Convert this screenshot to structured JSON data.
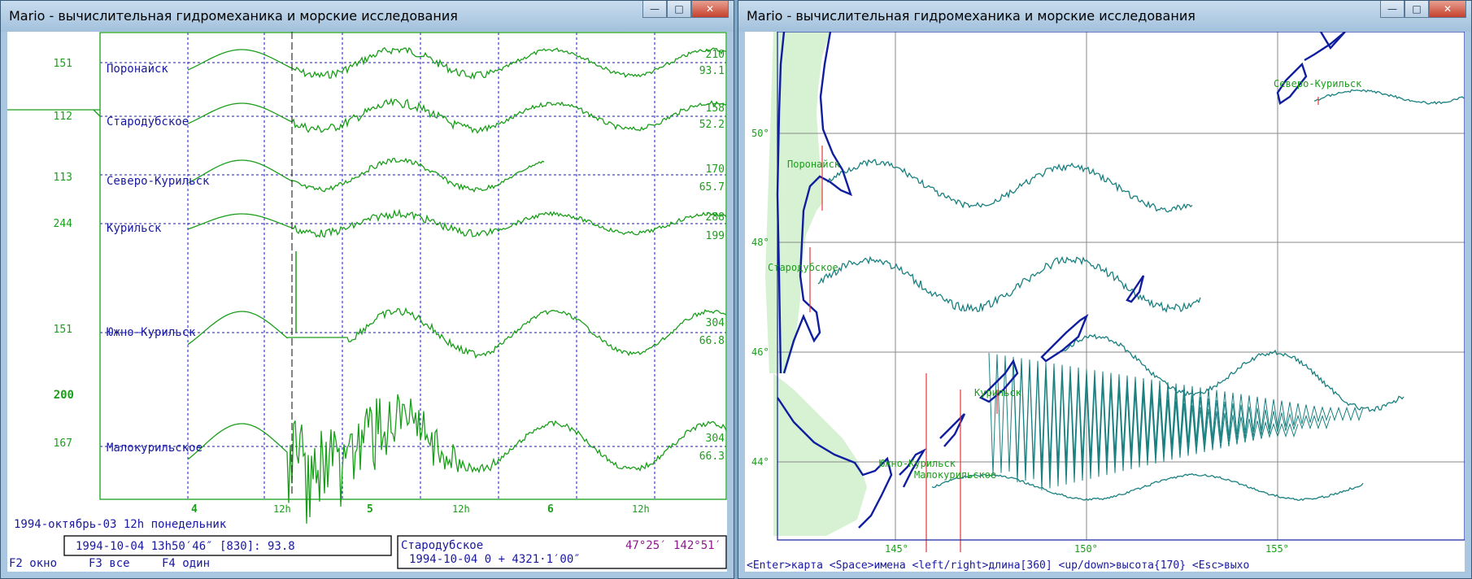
{
  "colors": {
    "green": "#1b9e1b",
    "blue": "#1818a0",
    "teal": "#1a8080",
    "coast": "#0f1e9e",
    "land": "#d7f2d2",
    "grid": "#1515c0",
    "magenta": "#8a1a8a"
  },
  "left_window": {
    "title": "Mario - вычислительная гидромеханика и морские исследования",
    "stations": [
      {
        "name": "Поронайск",
        "left": "151",
        "right_top": "210",
        "right_bottom": "93.1"
      },
      {
        "name": "Стародубское",
        "left": "112",
        "right_top": "158",
        "right_bottom": "52.2"
      },
      {
        "name": "Северо-Курильск",
        "left": "113",
        "right_top": "170",
        "right_bottom": "65.7"
      },
      {
        "name": "Курильск",
        "left": "244",
        "right_top": "288",
        "right_bottom": "199"
      },
      {
        "name": "Южно-Курильск",
        "left": "151",
        "right_top": "304",
        "right_bottom": "66.8"
      },
      {
        "name": "Малокурильское",
        "left": "167",
        "right_top": "304",
        "right_bottom": "66.3"
      }
    ],
    "scale_label": "200",
    "time_ticks": [
      "4",
      "12h",
      "5",
      "12h",
      "6",
      "12h"
    ],
    "date_line": "1994-октябрь-03  12h понедельник",
    "readout_left": "1994-10-04  13h50′46″ [830]: 93.8",
    "readout_right_station": "Стародубское",
    "readout_right_coords": "47°25′  142°51′",
    "readout_right_line2": "1994-10-04  0 + 4321·1′00″",
    "fkeys": [
      "F2 окно",
      "F3 все",
      "F4 один"
    ]
  },
  "right_window": {
    "title": "Mario - вычислительная гидромеханика и морские исследования",
    "lat_labels": [
      "50°",
      "48°",
      "46°",
      "44°"
    ],
    "lon_labels": [
      "145°",
      "150°",
      "155°"
    ],
    "places": [
      "Северо-Курильск",
      "Поронайск",
      "Стародубское",
      "Курильск",
      "Южно-Курильск",
      "Малокурильское"
    ],
    "help": "<Enter>карта <Space>имена <left/right>длина[360] <up/down>высота{170} <Esc>выхо"
  }
}
